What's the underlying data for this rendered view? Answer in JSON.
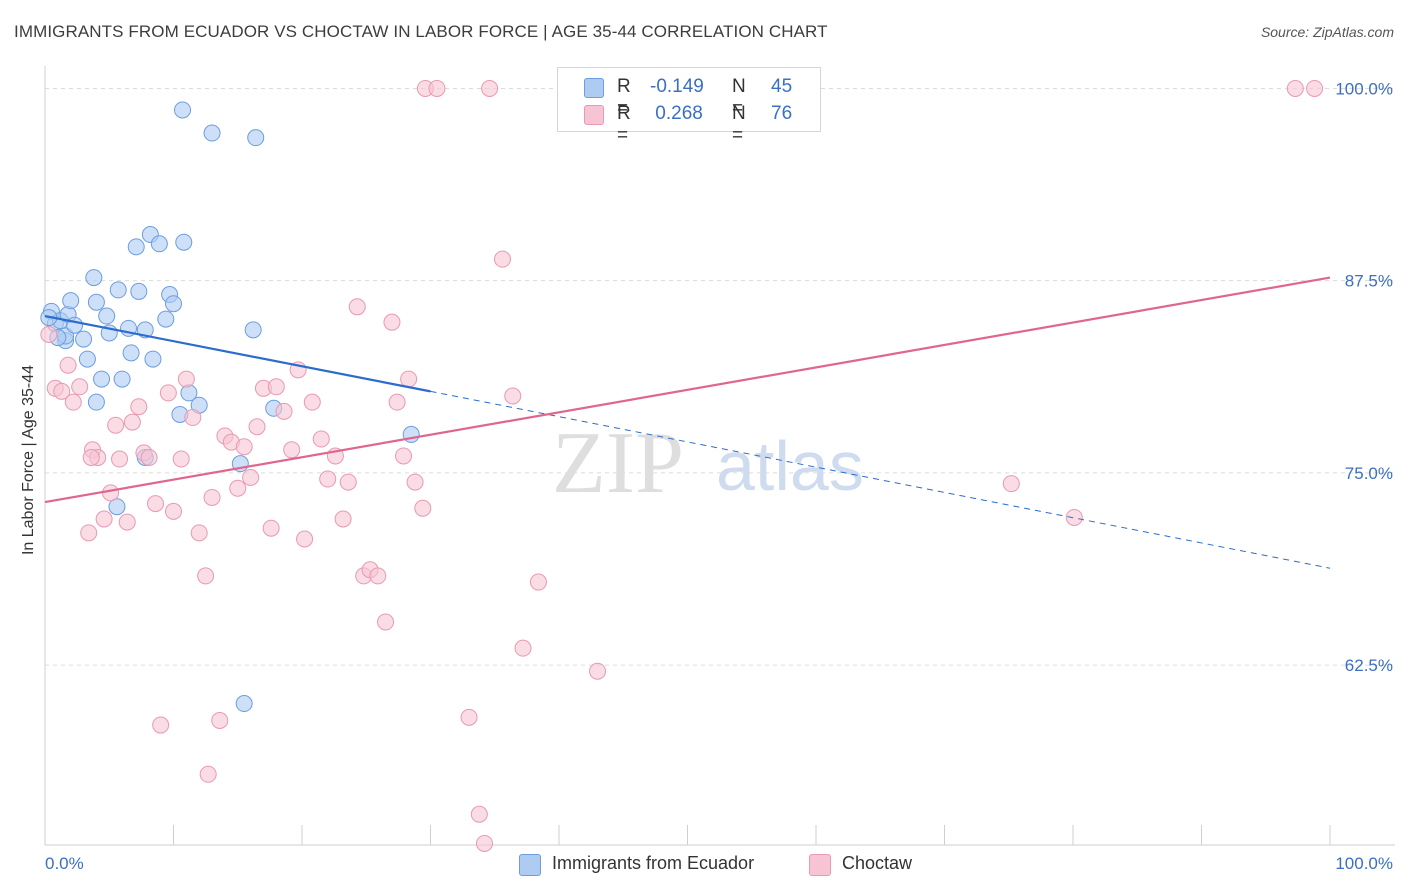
{
  "title": "IMMIGRANTS FROM ECUADOR VS CHOCTAW IN LABOR FORCE | AGE 35-44 CORRELATION CHART",
  "source": "Source: ZipAtlas.com",
  "watermark": {
    "part1": "ZIP",
    "part2": "atlas"
  },
  "legend_top": {
    "rows": [
      {
        "r_label": "R = ",
        "r_value": "-0.149",
        "n_label": "N = ",
        "n_value": "45"
      },
      {
        "r_label": "R = ",
        "r_value": " 0.268",
        "n_label": "N = ",
        "n_value": "76"
      }
    ]
  },
  "legend_bottom": [
    "Immigrants from Ecuador",
    "Choctaw"
  ],
  "colors": {
    "blue_fill": "#aecbf2",
    "blue_stroke": "#6c9de0",
    "blue_line": "#2b6ccc",
    "pink_fill": "#f7c4d3",
    "pink_stroke": "#e899b3",
    "pink_line": "#e0668f",
    "tick_text": "#3b6fc4",
    "grid": "#dcdcdc"
  },
  "chart_data": {
    "type": "scatter",
    "title": "IMMIGRANTS FROM ECUADOR VS CHOCTAW IN LABOR FORCE | AGE 35-44 CORRELATION CHART",
    "xlabel": "",
    "ylabel": "In Labor Force | Age 35-44",
    "xlim": [
      0,
      100
    ],
    "ylim": [
      50.8,
      101.2
    ],
    "x_tick_labels": [
      {
        "value": 0,
        "label": "0.0%"
      },
      {
        "value": 100,
        "label": "100.0%"
      }
    ],
    "y_tick_labels": [
      {
        "value": 100,
        "label": "100.0%"
      },
      {
        "value": 87.5,
        "label": "87.5%"
      },
      {
        "value": 75,
        "label": "75.0%"
      },
      {
        "value": 62.5,
        "label": "62.5%"
      }
    ],
    "series": [
      {
        "name": "Immigrants from Ecuador",
        "color": "#aecbf2",
        "points": [
          [
            0.5,
            85.5
          ],
          [
            0.8,
            84.7
          ],
          [
            1.2,
            84.9
          ],
          [
            1.6,
            83.6
          ],
          [
            1.8,
            85.3
          ],
          [
            1.6,
            83.9
          ],
          [
            2.0,
            86.2
          ],
          [
            3.0,
            83.7
          ],
          [
            3.3,
            82.4
          ],
          [
            3.8,
            87.7
          ],
          [
            4.0,
            86.1
          ],
          [
            4.4,
            81.1
          ],
          [
            4.8,
            85.2
          ],
          [
            5.0,
            84.1
          ],
          [
            5.7,
            86.9
          ],
          [
            6.0,
            81.1
          ],
          [
            6.5,
            84.4
          ],
          [
            6.7,
            82.8
          ],
          [
            7.1,
            89.7
          ],
          [
            7.3,
            86.8
          ],
          [
            7.8,
            84.3
          ],
          [
            8.2,
            90.5
          ],
          [
            8.4,
            82.4
          ],
          [
            8.9,
            89.9
          ],
          [
            9.4,
            85.0
          ],
          [
            9.7,
            86.6
          ],
          [
            10.0,
            86.0
          ],
          [
            10.8,
            90.0
          ],
          [
            11.2,
            80.2
          ],
          [
            12.0,
            79.4
          ],
          [
            10.5,
            78.8
          ],
          [
            7.8,
            76.0
          ],
          [
            10.7,
            98.6
          ],
          [
            13.0,
            97.1
          ],
          [
            16.4,
            96.8
          ],
          [
            16.2,
            84.3
          ],
          [
            15.2,
            75.6
          ],
          [
            17.8,
            79.2
          ],
          [
            28.5,
            77.5
          ],
          [
            4.0,
            79.6
          ],
          [
            5.6,
            72.8
          ],
          [
            15.5,
            60.0
          ],
          [
            0.3,
            85.1
          ],
          [
            2.3,
            84.6
          ],
          [
            1.0,
            83.8
          ]
        ]
      },
      {
        "name": "Choctaw",
        "color": "#f7c4d3",
        "points": [
          [
            0.3,
            84.0
          ],
          [
            0.8,
            80.5
          ],
          [
            1.3,
            80.3
          ],
          [
            1.8,
            82.0
          ],
          [
            2.2,
            79.6
          ],
          [
            2.7,
            80.6
          ],
          [
            3.4,
            71.1
          ],
          [
            3.7,
            76.5
          ],
          [
            4.1,
            76.0
          ],
          [
            4.6,
            72.0
          ],
          [
            5.1,
            73.7
          ],
          [
            5.5,
            78.1
          ],
          [
            5.8,
            75.9
          ],
          [
            6.4,
            71.8
          ],
          [
            6.8,
            78.3
          ],
          [
            7.3,
            79.3
          ],
          [
            7.7,
            76.3
          ],
          [
            8.1,
            76.0
          ],
          [
            8.6,
            73.0
          ],
          [
            9.0,
            58.6
          ],
          [
            9.6,
            80.2
          ],
          [
            10.0,
            72.5
          ],
          [
            10.6,
            75.9
          ],
          [
            11.0,
            81.1
          ],
          [
            11.5,
            78.6
          ],
          [
            12.0,
            71.1
          ],
          [
            12.5,
            68.3
          ],
          [
            13.0,
            73.4
          ],
          [
            13.6,
            58.9
          ],
          [
            14.0,
            77.4
          ],
          [
            14.5,
            77.0
          ],
          [
            15.0,
            74.0
          ],
          [
            15.5,
            76.7
          ],
          [
            16.0,
            74.7
          ],
          [
            16.5,
            78.0
          ],
          [
            17.0,
            80.5
          ],
          [
            17.6,
            71.4
          ],
          [
            18.0,
            80.6
          ],
          [
            18.6,
            79.0
          ],
          [
            19.2,
            76.5
          ],
          [
            19.7,
            81.7
          ],
          [
            20.2,
            70.7
          ],
          [
            20.8,
            79.6
          ],
          [
            21.5,
            77.2
          ],
          [
            22.0,
            74.6
          ],
          [
            22.6,
            76.1
          ],
          [
            23.2,
            72.0
          ],
          [
            23.6,
            74.4
          ],
          [
            24.3,
            85.8
          ],
          [
            24.8,
            68.3
          ],
          [
            25.3,
            68.7
          ],
          [
            25.9,
            68.3
          ],
          [
            26.5,
            65.3
          ],
          [
            27.0,
            84.8
          ],
          [
            27.4,
            79.6
          ],
          [
            27.9,
            76.1
          ],
          [
            28.3,
            81.1
          ],
          [
            28.8,
            74.4
          ],
          [
            29.4,
            72.7
          ],
          [
            29.6,
            100.0
          ],
          [
            30.5,
            100.0
          ],
          [
            33.0,
            59.1
          ],
          [
            33.8,
            52.8
          ],
          [
            34.2,
            50.9
          ],
          [
            34.6,
            100.0
          ],
          [
            35.6,
            88.9
          ],
          [
            36.4,
            80.0
          ],
          [
            37.2,
            63.6
          ],
          [
            38.4,
            67.9
          ],
          [
            43.0,
            62.1
          ],
          [
            75.2,
            74.3
          ],
          [
            80.1,
            72.1
          ],
          [
            97.3,
            100.0
          ],
          [
            98.8,
            100.0
          ],
          [
            12.7,
            55.4
          ],
          [
            3.6,
            76.0
          ]
        ]
      }
    ],
    "trend_lines": [
      {
        "series": "Immigrants from Ecuador",
        "solid": [
          [
            0,
            85.2
          ],
          [
            30,
            80.3
          ]
        ],
        "dashed": [
          [
            30,
            80.3
          ],
          [
            100,
            68.8
          ]
        ]
      },
      {
        "series": "Choctaw",
        "solid": [
          [
            0,
            73.1
          ],
          [
            100,
            87.7
          ]
        ]
      }
    ]
  }
}
